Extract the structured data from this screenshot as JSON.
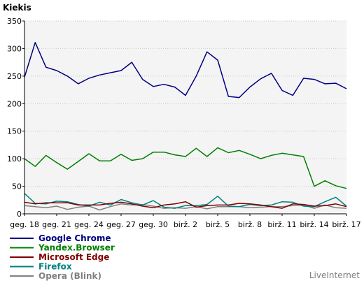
{
  "chart_data": {
    "type": "line",
    "ylabel": "Kiekis",
    "ylim": [
      0,
      350
    ],
    "yticks": [
      0,
      50,
      100,
      150,
      200,
      250,
      300,
      350
    ],
    "xlim": [
      0,
      30
    ],
    "grid": true,
    "legend_position": "bottom-left",
    "x_tick_labels": [
      {
        "i": 0,
        "label": "geg. 18"
      },
      {
        "i": 3,
        "label": "geg. 21"
      },
      {
        "i": 6,
        "label": "geg. 24"
      },
      {
        "i": 9,
        "label": "geg. 27"
      },
      {
        "i": 12,
        "label": "geg. 30"
      },
      {
        "i": 15,
        "label": "birž. 2"
      },
      {
        "i": 18,
        "label": "birž. 5"
      },
      {
        "i": 21,
        "label": "birž. 8"
      },
      {
        "i": 24,
        "label": "birž. 11"
      },
      {
        "i": 27,
        "label": "birž. 14"
      },
      {
        "i": 30,
        "label": "birž. 17"
      }
    ],
    "series": [
      {
        "name": "Google Chrome",
        "color": "#000080",
        "values": [
          248,
          311,
          266,
          260,
          250,
          236,
          246,
          252,
          256,
          260,
          275,
          244,
          231,
          235,
          230,
          215,
          250,
          294,
          279,
          213,
          211,
          230,
          245,
          255,
          224,
          215,
          246,
          244,
          236,
          237,
          227
        ]
      },
      {
        "name": "Yandex.Browser",
        "color": "#008000",
        "values": [
          100,
          86,
          106,
          93,
          81,
          95,
          109,
          96,
          96,
          108,
          97,
          100,
          112,
          112,
          107,
          104,
          119,
          104,
          120,
          111,
          115,
          108,
          100,
          106,
          110,
          107,
          104,
          50,
          60,
          51,
          46
        ]
      },
      {
        "name": "Microsoft Edge",
        "color": "#800000",
        "values": [
          21,
          18,
          20,
          20,
          20,
          16,
          16,
          16,
          19,
          21,
          18,
          14,
          11,
          16,
          18,
          22,
          12,
          15,
          16,
          16,
          19,
          18,
          16,
          13,
          10,
          18,
          17,
          14,
          15,
          18,
          13
        ]
      },
      {
        "name": "Firefox",
        "color": "#008080",
        "values": [
          37,
          19,
          18,
          23,
          22,
          17,
          14,
          21,
          16,
          26,
          20,
          16,
          24,
          12,
          10,
          15,
          15,
          17,
          32,
          14,
          13,
          17,
          15,
          16,
          22,
          21,
          14,
          13,
          22,
          30,
          14
        ]
      },
      {
        "name": "Opera (Blink)",
        "color": "#808080",
        "values": [
          15,
          13,
          11,
          14,
          8,
          12,
          14,
          7,
          13,
          18,
          16,
          17,
          14,
          10,
          11,
          10,
          13,
          9,
          13,
          13,
          13,
          11,
          12,
          13,
          13,
          15,
          16,
          10,
          16,
          11,
          10
        ]
      }
    ],
    "brand": "LiveInternet"
  }
}
